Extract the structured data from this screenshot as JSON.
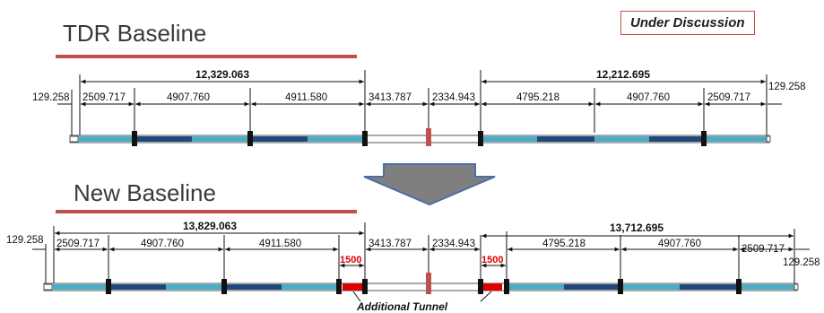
{
  "badge": "Under Discussion",
  "tdr": {
    "title": "TDR Baseline",
    "end_left": "129.258",
    "end_right": "129.258",
    "total_left": "12,329.063",
    "total_right": "12,212.695",
    "segments": [
      "2509.717",
      "4907.760",
      "4911.580",
      "3413.787",
      "2334.943",
      "4795.218",
      "4907.760",
      "2509.717"
    ]
  },
  "new": {
    "title": "New Baseline",
    "end_left": "129.258",
    "end_right": "129.258",
    "total_left": "13,829.063",
    "total_right": "13,712.695",
    "segments": [
      "2509.717",
      "4907.760",
      "4911.580",
      "3413.787",
      "2334.943",
      "4795.218",
      "4907.760",
      "2509.717"
    ],
    "tunnel_left": "1500",
    "tunnel_right": "1500",
    "tunnel_label": "Additional Tunnel"
  },
  "colors": {
    "title_rule": "#c0504d",
    "light_segment": "#4bacc6",
    "dark_segment": "#1f497d",
    "marker": "#111111",
    "ip_marker": "#c0504d",
    "tunnel": "#e00000",
    "arrow": "#7f7f7f",
    "arrow_outline": "#4a6fa5"
  }
}
